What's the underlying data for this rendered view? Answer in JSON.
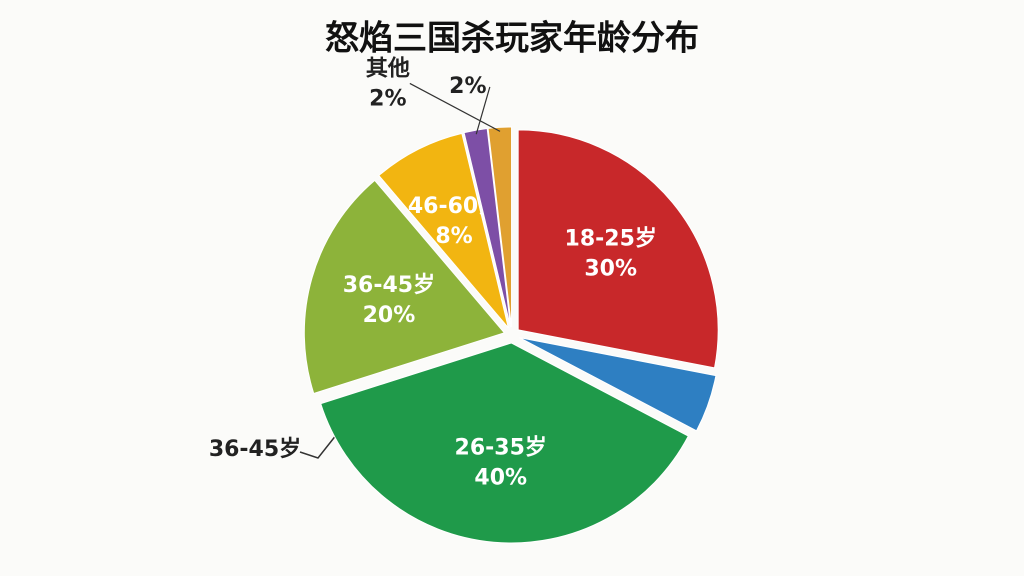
{
  "chart_data": {
    "type": "pie",
    "title": "怒焰三国杀玩家年龄分布",
    "categories": [
      "18-25岁",
      null,
      "26-35岁",
      "36-45岁",
      "46-60岁",
      null,
      "其他"
    ],
    "values": [
      30,
      5,
      40,
      20,
      8,
      2,
      2
    ],
    "value_labels": [
      "30%",
      null,
      "40%",
      "20%",
      "8%",
      "2%",
      "2%"
    ],
    "colors": [
      "#c8282a",
      "#2e7fc2",
      "#1f9a4a",
      "#8db33a",
      "#f2b511",
      "#7d4fa6",
      "#e0a030"
    ],
    "annotations": [
      "36-45岁"
    ]
  }
}
